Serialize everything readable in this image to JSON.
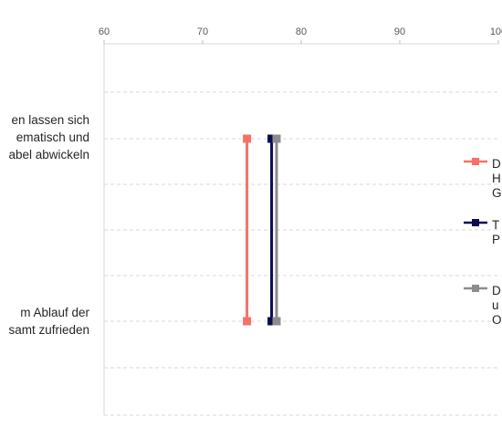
{
  "chart_data": {
    "type": "line",
    "orientation": "horizontal",
    "xlim": [
      60,
      100
    ],
    "ticks": [
      "60",
      "70",
      "80",
      "90",
      "100"
    ],
    "grid": true,
    "categories": [
      "...en lassen sich\n...ematisch und\n...abel abwickeln",
      "...m Ablauf der\n...samt zufrieden"
    ],
    "series": [
      {
        "name": "D... H... G...",
        "color": "#f4726a",
        "values": [
          74.5,
          74.5
        ]
      },
      {
        "name": "T... P...",
        "color": "#0a0a50",
        "values": [
          77,
          77
        ]
      },
      {
        "name": "D... u... O...",
        "color": "#8c8c8c",
        "values": [
          77.5,
          77.5
        ]
      }
    ],
    "legend": {
      "position": "right",
      "items": [
        {
          "label": "D\nH\nG",
          "color": "#f4726a"
        },
        {
          "label": "T\nP",
          "color": "#0a0a50"
        },
        {
          "label": "D\nu\nO",
          "color": "#8c8c8c"
        }
      ]
    }
  },
  "ui": {
    "category_lines": [
      [
        "en lassen sich",
        "ematisch und",
        "abel abwickeln"
      ],
      [
        "m Ablauf der",
        "samt zufrieden"
      ]
    ]
  }
}
